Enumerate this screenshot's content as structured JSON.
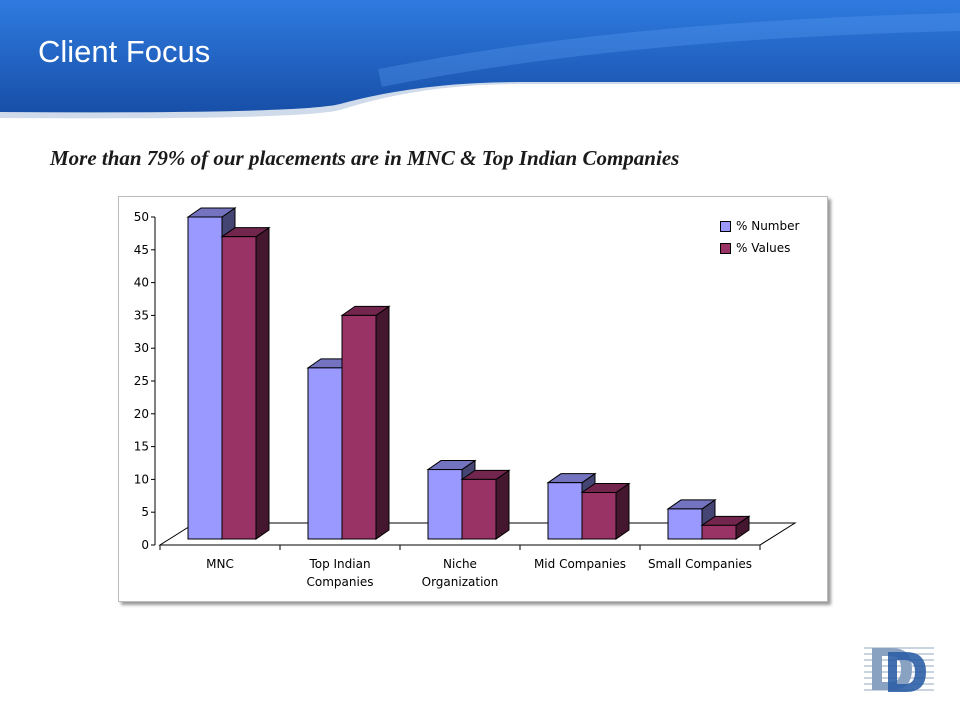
{
  "slide": {
    "title": "Client Focus",
    "subtitle": "More than 79% of our placements are in MNC & Top Indian Companies"
  },
  "colors": {
    "header_blue": "#1f5fbf",
    "series_1": "#9999ff",
    "series_2": "#993366"
  },
  "chart_data": {
    "type": "bar",
    "style": "3d-clustered-column",
    "categories": [
      "MNC",
      "Top Indian Companies",
      "Niche Organization",
      "Mid Companies",
      "Small Companies"
    ],
    "category_labels": [
      [
        "MNC"
      ],
      [
        "Top Indian",
        "Companies"
      ],
      [
        "Niche",
        "Organization"
      ],
      [
        "Mid Companies"
      ],
      [
        "Small Companies"
      ]
    ],
    "series": [
      {
        "name": "% Number",
        "values": [
          50,
          27,
          11.5,
          9.5,
          5.5
        ]
      },
      {
        "name": "% Values",
        "values": [
          47,
          35,
          10,
          8,
          3
        ]
      }
    ],
    "ylim": [
      0,
      50
    ],
    "yticks": [
      0,
      5,
      10,
      15,
      20,
      25,
      30,
      35,
      40,
      45,
      50
    ],
    "legend_position": "top-right",
    "grid": false
  }
}
